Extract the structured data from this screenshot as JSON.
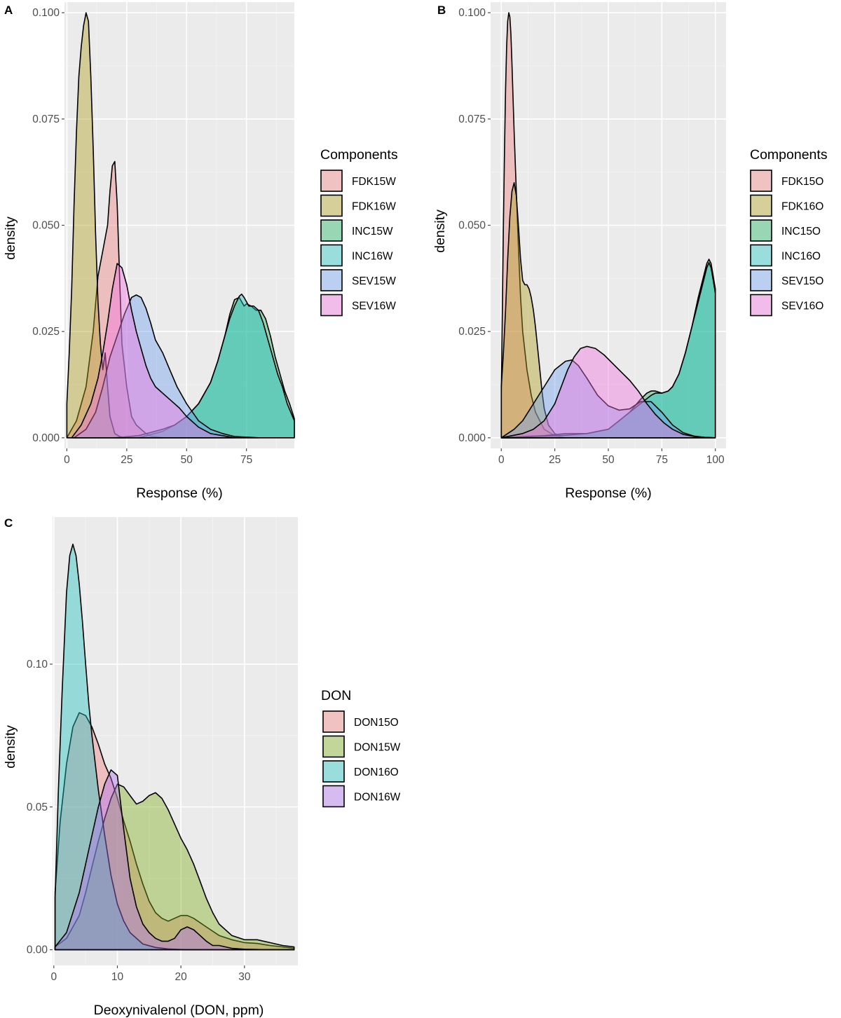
{
  "figure": {
    "panels": [
      "A",
      "B",
      "C"
    ]
  },
  "colors": {
    "panel_bg": "#ebebeb",
    "grid_major": "#ffffff",
    "grid_minor": "#f4f4f4",
    "outline": "#000000",
    "tick": "#4d4d4d"
  },
  "chart_data": [
    {
      "panel": "A",
      "type": "area",
      "xlabel": "Response (%)",
      "ylabel": "density",
      "legend_title": "Components",
      "legend_position": "right",
      "xlim": [
        -1,
        95
      ],
      "ylim": [
        -0.0025,
        0.1025
      ],
      "xticks": [
        0,
        25,
        50,
        75
      ],
      "yticks": [
        0.0,
        0.025,
        0.05,
        0.075,
        0.1
      ],
      "ytick_labels": [
        "0.000",
        "0.025",
        "0.050",
        "0.075",
        "0.100"
      ],
      "series": [
        {
          "name": "FDK15W",
          "color": "#f08080",
          "x": [
            0,
            4,
            8,
            11,
            13,
            15,
            17,
            18,
            19,
            20,
            21,
            22,
            23,
            25,
            27,
            29,
            31,
            33,
            35,
            40
          ],
          "y": [
            0,
            0.004,
            0.012,
            0.025,
            0.038,
            0.044,
            0.05,
            0.058,
            0.064,
            0.065,
            0.055,
            0.038,
            0.022,
            0.012,
            0.005,
            0.003,
            0.002,
            0.001,
            0.0004,
            0
          ]
        },
        {
          "name": "FDK16W",
          "color": "#b0a020",
          "x": [
            0,
            1,
            2,
            3,
            4,
            5,
            6,
            7,
            8,
            9,
            10,
            11,
            12,
            13,
            14,
            15,
            16,
            17,
            18,
            20,
            22,
            25
          ],
          "y": [
            0.008,
            0.02,
            0.035,
            0.055,
            0.072,
            0.085,
            0.092,
            0.097,
            0.1,
            0.098,
            0.085,
            0.068,
            0.048,
            0.032,
            0.022,
            0.016,
            0.02,
            0.012,
            0.005,
            0.001,
            0.0003,
            0
          ]
        },
        {
          "name": "INC15W",
          "color": "#20b060",
          "x": [
            30,
            40,
            45,
            50,
            55,
            60,
            63,
            66,
            68,
            70,
            72,
            74,
            75,
            77,
            79,
            81,
            83,
            85,
            87,
            89,
            91,
            93,
            95
          ],
          "y": [
            0,
            0.0015,
            0.003,
            0.005,
            0.008,
            0.013,
            0.018,
            0.024,
            0.029,
            0.0325,
            0.033,
            0.031,
            0.0315,
            0.031,
            0.03,
            0.03,
            0.028,
            0.024,
            0.019,
            0.015,
            0.011,
            0.008,
            0.0045
          ]
        },
        {
          "name": "INC16W",
          "color": "#20c0c0",
          "x": [
            20,
            30,
            40,
            45,
            50,
            55,
            60,
            63,
            66,
            68,
            70,
            72,
            73,
            74,
            76,
            78,
            80,
            82,
            84,
            86,
            88,
            90,
            92,
            95
          ],
          "y": [
            0,
            0.0005,
            0.002,
            0.003,
            0.005,
            0.008,
            0.013,
            0.018,
            0.024,
            0.028,
            0.031,
            0.0333,
            0.0338,
            0.033,
            0.031,
            0.031,
            0.03,
            0.027,
            0.023,
            0.019,
            0.015,
            0.012,
            0.008,
            0.004
          ]
        },
        {
          "name": "SEV15W",
          "color": "#6fa0f0",
          "x": [
            3,
            8,
            12,
            15,
            18,
            21,
            24,
            27,
            29,
            31,
            33,
            35,
            37,
            40,
            43,
            46,
            50,
            55,
            60,
            65,
            70,
            80
          ],
          "y": [
            0,
            0.002,
            0.006,
            0.012,
            0.019,
            0.024,
            0.029,
            0.033,
            0.0336,
            0.033,
            0.0305,
            0.027,
            0.023,
            0.02,
            0.016,
            0.012,
            0.008,
            0.004,
            0.002,
            0.001,
            0.0003,
            0
          ]
        },
        {
          "name": "SEV16W",
          "color": "#f070e0",
          "x": [
            2,
            6,
            10,
            13,
            15,
            17,
            19,
            21,
            23,
            25,
            27,
            29,
            31,
            33,
            35,
            37,
            39,
            41,
            44,
            47,
            50,
            55,
            60,
            70
          ],
          "y": [
            0,
            0.003,
            0.008,
            0.014,
            0.02,
            0.027,
            0.035,
            0.041,
            0.04,
            0.036,
            0.03,
            0.025,
            0.021,
            0.017,
            0.014,
            0.012,
            0.011,
            0.01,
            0.0085,
            0.007,
            0.005,
            0.0025,
            0.001,
            0
          ]
        }
      ]
    },
    {
      "panel": "B",
      "type": "area",
      "xlabel": "Response (%)",
      "ylabel": "density",
      "legend_title": "Components",
      "legend_position": "right",
      "xlim": [
        -5,
        105
      ],
      "ylim": [
        -0.0025,
        0.1025
      ],
      "xticks": [
        0,
        25,
        50,
        75,
        100
      ],
      "yticks": [
        0.0,
        0.025,
        0.05,
        0.075,
        0.1
      ],
      "ytick_labels": [
        "0.000",
        "0.025",
        "0.050",
        "0.075",
        "0.100"
      ],
      "series": [
        {
          "name": "FDK15O",
          "color": "#f08080",
          "x": [
            0,
            0.5,
            1,
            1.5,
            2,
            2.5,
            3,
            3.5,
            4,
            4.5,
            5,
            6,
            7,
            8,
            9,
            10,
            12,
            14,
            16,
            18,
            20,
            25,
            30
          ],
          "y": [
            0.01,
            0.03,
            0.05,
            0.068,
            0.082,
            0.092,
            0.098,
            0.1,
            0.099,
            0.095,
            0.088,
            0.072,
            0.058,
            0.045,
            0.033,
            0.025,
            0.016,
            0.01,
            0.006,
            0.004,
            0.002,
            0.0005,
            0
          ]
        },
        {
          "name": "FDK16O",
          "color": "#b0a020",
          "x": [
            0,
            1,
            2,
            3,
            4,
            5,
            6,
            7,
            8,
            9,
            10,
            11,
            12,
            13,
            14,
            15,
            16,
            17,
            18,
            19,
            20,
            22,
            25,
            28
          ],
          "y": [
            0.012,
            0.02,
            0.03,
            0.042,
            0.052,
            0.058,
            0.06,
            0.057,
            0.05,
            0.042,
            0.037,
            0.036,
            0.036,
            0.035,
            0.033,
            0.03,
            0.026,
            0.021,
            0.016,
            0.011,
            0.007,
            0.003,
            0.001,
            0
          ]
        },
        {
          "name": "INC15O",
          "color": "#20b060",
          "x": [
            0,
            10,
            20,
            30,
            40,
            50,
            55,
            60,
            65,
            68,
            70,
            72,
            75,
            78,
            80,
            83,
            86,
            89,
            92,
            94,
            96,
            97,
            98,
            99,
            100
          ],
          "y": [
            0,
            0.0003,
            0.0005,
            0.001,
            0.001,
            0.002,
            0.004,
            0.006,
            0.009,
            0.0105,
            0.011,
            0.011,
            0.0105,
            0.011,
            0.012,
            0.015,
            0.02,
            0.026,
            0.033,
            0.037,
            0.041,
            0.042,
            0.041,
            0.038,
            0.035
          ]
        },
        {
          "name": "INC16O",
          "color": "#20c0c0",
          "x": [
            0,
            10,
            20,
            30,
            40,
            50,
            55,
            60,
            65,
            70,
            72,
            75,
            78,
            80,
            83,
            86,
            89,
            92,
            94,
            96,
            97,
            98,
            99,
            100
          ],
          "y": [
            0,
            0.0002,
            0.0004,
            0.0006,
            0.001,
            0.002,
            0.004,
            0.006,
            0.008,
            0.01,
            0.0105,
            0.0105,
            0.011,
            0.012,
            0.015,
            0.02,
            0.026,
            0.032,
            0.036,
            0.04,
            0.0412,
            0.04,
            0.037,
            0.034
          ]
        },
        {
          "name": "SEV15O",
          "color": "#6fa0f0",
          "x": [
            0,
            3,
            6,
            10,
            15,
            20,
            25,
            30,
            33,
            36,
            40,
            45,
            50,
            55,
            60,
            65,
            70,
            75,
            80,
            85,
            90,
            95,
            100
          ],
          "y": [
            0,
            0.001,
            0.002,
            0.004,
            0.008,
            0.012,
            0.016,
            0.018,
            0.0183,
            0.017,
            0.014,
            0.01,
            0.0075,
            0.0065,
            0.0068,
            0.0085,
            0.0085,
            0.006,
            0.003,
            0.0012,
            0.0004,
            0.0001,
            0
          ]
        },
        {
          "name": "SEV16O",
          "color": "#f070e0",
          "x": [
            0,
            5,
            10,
            15,
            20,
            25,
            28,
            31,
            34,
            37,
            40,
            44,
            48,
            52,
            56,
            60,
            64,
            68,
            72,
            76,
            80,
            85,
            90,
            95,
            100
          ],
          "y": [
            0,
            0.0005,
            0.001,
            0.002,
            0.004,
            0.008,
            0.012,
            0.016,
            0.019,
            0.021,
            0.0215,
            0.021,
            0.0195,
            0.0175,
            0.0155,
            0.0135,
            0.011,
            0.008,
            0.0055,
            0.0035,
            0.002,
            0.0008,
            0.0003,
            0.0001,
            0
          ]
        }
      ]
    },
    {
      "panel": "C",
      "type": "area",
      "xlabel": "Deoxynivalenol (DON, ppm)",
      "ylabel": "density",
      "legend_title": "DON",
      "legend_position": "right",
      "xlim": [
        -0.2,
        38.4
      ],
      "ylim": [
        -0.0055,
        0.1515
      ],
      "xticks": [
        0,
        10,
        20,
        30
      ],
      "yticks": [
        0.0,
        0.05,
        0.1
      ],
      "ytick_labels": [
        "0.00",
        "0.05",
        "0.10"
      ],
      "series": [
        {
          "name": "DON15O",
          "color": "#f08080",
          "x": [
            0.2,
            1,
            2,
            3,
            4,
            5,
            6,
            7,
            8,
            9,
            10,
            11,
            12,
            13,
            14,
            15,
            16,
            17,
            18,
            19,
            20,
            21,
            22,
            24,
            26,
            28,
            30,
            32,
            34,
            36,
            37.8
          ],
          "y": [
            0.02,
            0.045,
            0.065,
            0.078,
            0.083,
            0.082,
            0.078,
            0.072,
            0.065,
            0.06,
            0.053,
            0.045,
            0.038,
            0.03,
            0.023,
            0.017,
            0.013,
            0.011,
            0.01,
            0.011,
            0.012,
            0.012,
            0.011,
            0.008,
            0.005,
            0.0035,
            0.0025,
            0.0022,
            0.0015,
            0.001,
            0.0005
          ]
        },
        {
          "name": "DON15W",
          "color": "#80b020",
          "x": [
            0.2,
            2,
            4,
            5,
            6,
            7,
            8,
            9,
            10,
            11,
            12,
            13,
            14,
            15,
            16,
            17,
            18,
            19,
            20,
            21,
            22,
            23,
            24,
            25,
            26,
            28,
            30,
            32,
            34,
            36,
            37.8
          ],
          "y": [
            0.001,
            0.004,
            0.012,
            0.02,
            0.029,
            0.038,
            0.046,
            0.053,
            0.058,
            0.057,
            0.054,
            0.051,
            0.052,
            0.054,
            0.055,
            0.053,
            0.049,
            0.044,
            0.039,
            0.035,
            0.03,
            0.024,
            0.018,
            0.013,
            0.009,
            0.005,
            0.0035,
            0.0035,
            0.0025,
            0.0015,
            0.001
          ]
        },
        {
          "name": "DON16O",
          "color": "#20c0c0",
          "x": [
            0.2,
            0.7,
            1.3,
            2,
            2.5,
            3,
            3.5,
            4,
            4.5,
            5,
            5.5,
            6,
            7,
            8,
            9,
            10,
            11,
            12,
            14,
            16,
            18,
            20,
            22,
            25,
            30,
            37.8
          ],
          "y": [
            0.018,
            0.055,
            0.09,
            0.125,
            0.138,
            0.142,
            0.138,
            0.128,
            0.115,
            0.1,
            0.086,
            0.075,
            0.056,
            0.04,
            0.026,
            0.016,
            0.01,
            0.006,
            0.002,
            0.0008,
            0.0003,
            0.0001,
            0,
            0,
            0,
            0
          ]
        },
        {
          "name": "DON16W",
          "color": "#b070f0",
          "x": [
            0.2,
            2,
            4,
            5,
            6,
            7,
            8,
            9,
            10,
            11,
            12,
            13,
            14,
            15,
            16,
            17,
            18,
            19,
            20,
            21,
            22,
            23,
            24,
            25,
            26,
            27,
            28,
            30,
            34,
            37.8
          ],
          "y": [
            0.001,
            0.006,
            0.02,
            0.03,
            0.04,
            0.05,
            0.058,
            0.063,
            0.061,
            0.042,
            0.025,
            0.015,
            0.009,
            0.006,
            0.004,
            0.003,
            0.003,
            0.004,
            0.007,
            0.008,
            0.007,
            0.005,
            0.003,
            0.0015,
            0.0015,
            0.001,
            0.0005,
            0.0002,
            0,
            0
          ]
        }
      ]
    }
  ]
}
